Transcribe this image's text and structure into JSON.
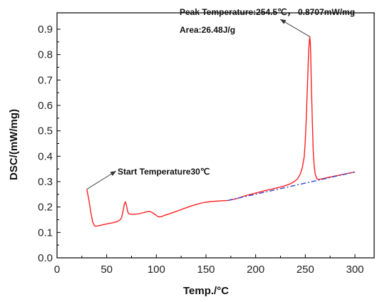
{
  "chart_data": {
    "type": "line",
    "xlabel": "Temp./°C",
    "ylabel": "DSC/(mW/mg)",
    "xlim": [
      0,
      300
    ],
    "ylim": [
      0,
      0.9
    ],
    "xticks": [
      0,
      50,
      100,
      150,
      200,
      250,
      300
    ],
    "yticks": [
      0.0,
      0.1,
      0.2,
      0.3,
      0.4,
      0.5,
      0.6,
      0.7,
      0.8,
      0.9
    ],
    "grid": false,
    "series": [
      {
        "color": "#ff2020",
        "x": [
          30,
          32,
          34,
          36,
          38,
          40,
          44,
          48,
          52,
          56,
          60,
          63,
          65,
          66,
          67,
          68,
          69,
          70,
          71,
          72,
          74,
          78,
          82,
          86,
          90,
          93,
          96,
          99,
          101,
          103,
          105,
          108,
          112,
          118,
          125,
          132,
          140,
          148,
          156,
          164,
          172,
          180,
          190,
          200,
          210,
          220,
          228,
          234,
          238,
          242,
          245,
          247,
          249,
          250,
          251,
          252,
          253,
          253.5,
          254,
          254.5,
          255,
          255.5,
          256,
          257,
          258,
          259,
          260,
          261,
          262,
          264,
          268,
          275,
          285,
          295,
          300
        ],
        "y": [
          0.27,
          0.23,
          0.18,
          0.14,
          0.125,
          0.125,
          0.128,
          0.132,
          0.135,
          0.138,
          0.142,
          0.148,
          0.158,
          0.175,
          0.195,
          0.215,
          0.22,
          0.205,
          0.185,
          0.174,
          0.172,
          0.172,
          0.173,
          0.177,
          0.181,
          0.183,
          0.178,
          0.17,
          0.164,
          0.161,
          0.162,
          0.167,
          0.172,
          0.18,
          0.19,
          0.2,
          0.21,
          0.218,
          0.222,
          0.224,
          0.226,
          0.232,
          0.245,
          0.255,
          0.265,
          0.274,
          0.282,
          0.29,
          0.298,
          0.31,
          0.33,
          0.355,
          0.4,
          0.46,
          0.55,
          0.66,
          0.77,
          0.82,
          0.85,
          0.87,
          0.85,
          0.8,
          0.7,
          0.55,
          0.42,
          0.36,
          0.33,
          0.318,
          0.31,
          0.309,
          0.312,
          0.318,
          0.326,
          0.334,
          0.338
        ]
      },
      {
        "color": "#3344cc",
        "dash": "dashdot",
        "x": [
          172,
          300
        ],
        "y": [
          0.226,
          0.338
        ]
      }
    ],
    "annotations": [
      {
        "text": "Peak Temperature:254.5℃， 0.8707mW/mg",
        "x": 254.5,
        "y": 0.8707
      },
      {
        "text": "Area:26.48J/g"
      },
      {
        "text": "Start Temperature30℃",
        "x": 30,
        "y": 0.27
      }
    ]
  }
}
